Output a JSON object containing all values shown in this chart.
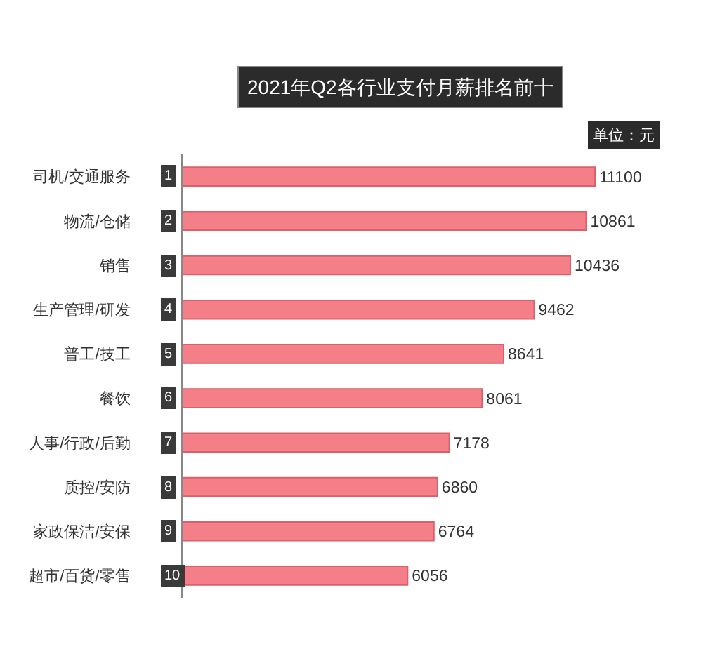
{
  "chart_data": {
    "type": "bar",
    "orientation": "horizontal",
    "title": "2021年Q2各行业支付月薪排名前十",
    "categories": [
      "司机/交通服务",
      "物流/仓储",
      "销售",
      "生产管理/研发",
      "普工/技工",
      "餐饮",
      "人事/行政/后勤",
      "质控/安防",
      "家政保洁/安保",
      "超市/百货/零售"
    ],
    "values": [
      11100,
      10861,
      10436,
      9462,
      8641,
      8061,
      7178,
      6860,
      6764,
      6056
    ],
    "color": "#f47f89",
    "data_labels": true,
    "tick_labels": "y",
    "annotations": [
      "单位：元",
      "1",
      "2",
      "3",
      "4",
      "5",
      "6",
      "7",
      "8",
      "9",
      "10"
    ]
  }
}
